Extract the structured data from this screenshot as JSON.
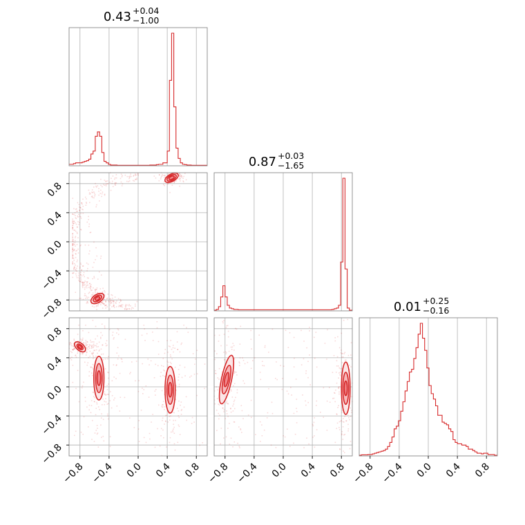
{
  "chart_data": {
    "type": "corner",
    "color": "#d62728",
    "fill_colors": [
      "#fbe3e4",
      "#f6b0b3",
      "#f07f84"
    ],
    "axis_range": [
      -0.95,
      0.95
    ],
    "ticks": [
      -0.8,
      -0.4,
      0.0,
      0.4,
      0.8
    ],
    "tick_labels": [
      "−0.8",
      "−0.4",
      "0.0",
      "0.4",
      "0.8"
    ],
    "parameters": [
      {
        "title": "0.43",
        "upper": "+0.04",
        "lower": "−1.00"
      },
      {
        "title": "0.87",
        "upper": "+0.03",
        "lower": "−1.65"
      },
      {
        "title": "0.01",
        "upper": "+0.25",
        "lower": "−0.16"
      }
    ],
    "histograms": [
      {
        "bins": [
          -0.95,
          -0.92,
          -0.89,
          -0.86,
          -0.83,
          -0.8,
          -0.77,
          -0.74,
          -0.71,
          -0.68,
          -0.65,
          -0.62,
          -0.59,
          -0.56,
          -0.53,
          -0.5,
          -0.47,
          -0.44,
          -0.41,
          -0.38,
          -0.35,
          -0.32,
          -0.29,
          -0.26,
          -0.23,
          -0.2,
          -0.17,
          -0.14,
          -0.11,
          -0.08,
          -0.05,
          -0.02,
          0.01,
          0.04,
          0.07,
          0.1,
          0.13,
          0.16,
          0.19,
          0.22,
          0.25,
          0.28,
          0.31,
          0.34,
          0.37,
          0.4,
          0.43,
          0.46,
          0.49,
          0.52,
          0.55,
          0.58,
          0.61,
          0.64,
          0.67,
          0.7,
          0.73,
          0.76,
          0.79,
          0.82,
          0.85,
          0.88,
          0.91,
          0.95
        ],
        "counts": [
          0.01,
          0.01,
          0.015,
          0.02,
          0.02,
          0.02,
          0.025,
          0.03,
          0.035,
          0.045,
          0.08,
          0.1,
          0.2,
          0.23,
          0.2,
          0.09,
          0.03,
          0.02,
          0.01,
          0.005,
          0.005,
          0.005,
          0.003,
          0.003,
          0.003,
          0.003,
          0.003,
          0.003,
          0.003,
          0.003,
          0.003,
          0.003,
          0.003,
          0.003,
          0.003,
          0.003,
          0.003,
          0.005,
          0.005,
          0.005,
          0.008,
          0.01,
          0.01,
          0.02,
          0.02,
          0.1,
          0.58,
          0.9,
          0.4,
          0.12,
          0.05,
          0.02,
          0.01,
          0.008,
          0.005,
          0.005,
          0.003,
          0.003,
          0.003,
          0.003,
          0.003,
          0.003,
          0.003
        ]
      },
      {
        "bins": [
          -0.95,
          -0.92,
          -0.89,
          -0.86,
          -0.83,
          -0.8,
          -0.77,
          -0.74,
          -0.71,
          -0.68,
          -0.65,
          -0.62,
          -0.59,
          -0.56,
          -0.53,
          -0.5,
          -0.47,
          -0.44,
          -0.41,
          -0.38,
          -0.35,
          -0.32,
          -0.29,
          -0.26,
          -0.23,
          -0.2,
          -0.17,
          -0.14,
          -0.11,
          -0.08,
          -0.05,
          -0.02,
          0.01,
          0.04,
          0.07,
          0.1,
          0.13,
          0.16,
          0.19,
          0.22,
          0.25,
          0.28,
          0.31,
          0.34,
          0.37,
          0.4,
          0.43,
          0.46,
          0.49,
          0.52,
          0.55,
          0.58,
          0.61,
          0.64,
          0.67,
          0.7,
          0.73,
          0.76,
          0.79,
          0.82,
          0.85,
          0.88,
          0.91,
          0.95
        ],
        "counts": [
          0.005,
          0.01,
          0.03,
          0.1,
          0.18,
          0.1,
          0.04,
          0.02,
          0.015,
          0.01,
          0.01,
          0.008,
          0.008,
          0.008,
          0.008,
          0.008,
          0.008,
          0.008,
          0.008,
          0.008,
          0.008,
          0.008,
          0.008,
          0.008,
          0.008,
          0.008,
          0.008,
          0.008,
          0.008,
          0.008,
          0.008,
          0.008,
          0.008,
          0.008,
          0.008,
          0.008,
          0.008,
          0.008,
          0.008,
          0.008,
          0.008,
          0.008,
          0.008,
          0.008,
          0.008,
          0.008,
          0.008,
          0.008,
          0.008,
          0.008,
          0.008,
          0.008,
          0.008,
          0.008,
          0.01,
          0.015,
          0.02,
          0.04,
          0.35,
          0.95,
          0.3,
          0.02,
          0.005
        ]
      },
      {
        "bins": [
          -0.95,
          -0.92,
          -0.89,
          -0.86,
          -0.83,
          -0.8,
          -0.77,
          -0.74,
          -0.71,
          -0.68,
          -0.65,
          -0.62,
          -0.59,
          -0.56,
          -0.53,
          -0.5,
          -0.47,
          -0.44,
          -0.41,
          -0.38,
          -0.35,
          -0.32,
          -0.29,
          -0.26,
          -0.23,
          -0.2,
          -0.17,
          -0.14,
          -0.11,
          -0.08,
          -0.05,
          -0.02,
          0.01,
          0.04,
          0.07,
          0.1,
          0.13,
          0.16,
          0.19,
          0.22,
          0.25,
          0.28,
          0.31,
          0.34,
          0.37,
          0.4,
          0.43,
          0.46,
          0.49,
          0.52,
          0.55,
          0.58,
          0.61,
          0.64,
          0.67,
          0.7,
          0.73,
          0.76,
          0.79,
          0.82,
          0.85,
          0.88,
          0.91,
          0.95
        ],
        "counts": [
          0.005,
          0.008,
          0.008,
          0.008,
          0.01,
          0.01,
          0.015,
          0.02,
          0.025,
          0.03,
          0.035,
          0.04,
          0.05,
          0.07,
          0.1,
          0.14,
          0.2,
          0.22,
          0.26,
          0.33,
          0.4,
          0.48,
          0.55,
          0.62,
          0.64,
          0.72,
          0.8,
          0.9,
          0.98,
          0.87,
          0.78,
          0.65,
          0.52,
          0.46,
          0.42,
          0.37,
          0.3,
          0.3,
          0.25,
          0.24,
          0.23,
          0.2,
          0.18,
          0.12,
          0.1,
          0.09,
          0.09,
          0.08,
          0.08,
          0.07,
          0.05,
          0.05,
          0.04,
          0.03,
          0.02,
          0.02,
          0.015,
          0.02,
          0.02,
          0.01,
          0.01,
          0.01,
          0.005
        ]
      }
    ],
    "contour_panels": [
      {
        "x_param": 0,
        "y_param": 1,
        "regions": [
          {
            "cx": 0.46,
            "cy": 0.88,
            "levels": [
              [
                0.1,
                0.05
              ],
              [
                0.07,
                0.035
              ],
              [
                0.04,
                0.02
              ]
            ],
            "angle": -28
          },
          {
            "cx": -0.56,
            "cy": -0.78,
            "levels": [
              [
                0.1,
                0.055
              ],
              [
                0.065,
                0.035
              ],
              [
                0.035,
                0.02
              ]
            ],
            "angle": -32
          }
        ]
      },
      {
        "x_param": 0,
        "y_param": 2,
        "regions": [
          {
            "cx": -0.54,
            "cy": 0.12,
            "levels": [
              [
                0.07,
                0.3
              ],
              [
                0.045,
                0.2
              ],
              [
                0.025,
                0.1
              ]
            ],
            "angle": 0
          },
          {
            "cx": -0.8,
            "cy": 0.55,
            "levels": [
              [
                0.09,
                0.05
              ],
              [
                0.05,
                0.03
              ],
              [
                0.03,
                0.015
              ]
            ],
            "angle": 40
          },
          {
            "cx": 0.44,
            "cy": -0.04,
            "levels": [
              [
                0.07,
                0.32
              ],
              [
                0.045,
                0.2
              ],
              [
                0.025,
                0.1
              ]
            ],
            "angle": 0
          }
        ]
      },
      {
        "x_param": 1,
        "y_param": 2,
        "regions": [
          {
            "cx": -0.78,
            "cy": 0.1,
            "levels": [
              [
                0.07,
                0.34
              ],
              [
                0.045,
                0.2
              ],
              [
                0.025,
                0.1
              ]
            ],
            "angle": 12
          },
          {
            "cx": 0.86,
            "cy": -0.02,
            "levels": [
              [
                0.06,
                0.36
              ],
              [
                0.04,
                0.22
              ],
              [
                0.02,
                0.1
              ]
            ],
            "angle": 0
          }
        ]
      }
    ],
    "scatter_density": [
      {
        "x_param": 0,
        "y_param": 1,
        "curve": "arc_upper_left"
      },
      {
        "x_param": 0,
        "y_param": 2,
        "curve": "band"
      },
      {
        "x_param": 1,
        "y_param": 2,
        "curve": "band"
      }
    ]
  }
}
